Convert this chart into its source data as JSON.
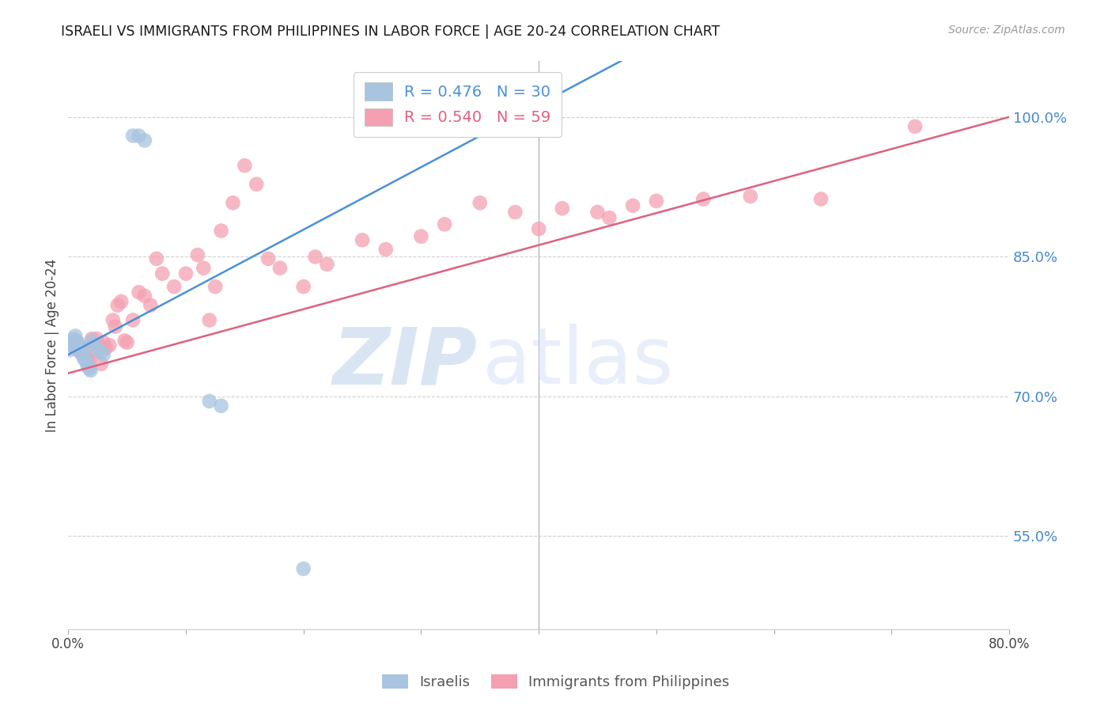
{
  "title": "ISRAELI VS IMMIGRANTS FROM PHILIPPINES IN LABOR FORCE | AGE 20-24 CORRELATION CHART",
  "source": "Source: ZipAtlas.com",
  "ylabel": "In Labor Force | Age 20-24",
  "xlim": [
    0.0,
    0.8
  ],
  "ylim": [
    0.45,
    1.06
  ],
  "right_yticks": [
    0.55,
    0.7,
    0.85,
    1.0
  ],
  "right_yticklabels": [
    "55.0%",
    "70.0%",
    "85.0%",
    "100.0%"
  ],
  "xticks": [
    0.0,
    0.1,
    0.2,
    0.3,
    0.4,
    0.5,
    0.6,
    0.7,
    0.8
  ],
  "xticklabels": [
    "0.0%",
    "",
    "",
    "",
    "",
    "",
    "",
    "",
    "80.0%"
  ],
  "R_israeli": 0.476,
  "N_israeli": 30,
  "R_philippines": 0.54,
  "N_philippines": 59,
  "israeli_color": "#a8c4e0",
  "philippines_color": "#f4a0b0",
  "israeli_line_color": "#4a90d9",
  "philippines_line_color": "#e06080",
  "watermark_zip_color": "#c0d4ec",
  "watermark_atlas_color": "#ccdcf4",
  "background_color": "#ffffff",
  "isr_x": [
    0.001,
    0.002,
    0.003,
    0.004,
    0.005,
    0.006,
    0.007,
    0.008,
    0.009,
    0.01,
    0.011,
    0.012,
    0.013,
    0.014,
    0.015,
    0.016,
    0.017,
    0.018,
    0.019,
    0.02,
    0.022,
    0.025,
    0.028,
    0.03,
    0.055,
    0.06,
    0.065,
    0.12,
    0.13,
    0.2
  ],
  "isr_y": [
    0.75,
    0.76,
    0.755,
    0.758,
    0.762,
    0.765,
    0.76,
    0.758,
    0.755,
    0.752,
    0.748,
    0.745,
    0.742,
    0.74,
    0.738,
    0.735,
    0.732,
    0.73,
    0.728,
    0.76,
    0.755,
    0.75,
    0.748,
    0.745,
    0.98,
    0.98,
    0.975,
    0.695,
    0.69,
    0.515
  ],
  "phi_x": [
    0.004,
    0.006,
    0.008,
    0.01,
    0.012,
    0.014,
    0.016,
    0.018,
    0.02,
    0.022,
    0.024,
    0.026,
    0.028,
    0.03,
    0.032,
    0.035,
    0.038,
    0.04,
    0.042,
    0.045,
    0.048,
    0.05,
    0.055,
    0.06,
    0.065,
    0.07,
    0.075,
    0.08,
    0.09,
    0.1,
    0.11,
    0.115,
    0.12,
    0.125,
    0.13,
    0.14,
    0.15,
    0.16,
    0.17,
    0.18,
    0.2,
    0.21,
    0.22,
    0.25,
    0.27,
    0.3,
    0.32,
    0.35,
    0.38,
    0.4,
    0.42,
    0.45,
    0.46,
    0.48,
    0.5,
    0.54,
    0.58,
    0.64,
    0.72
  ],
  "phi_y": [
    0.755,
    0.758,
    0.75,
    0.748,
    0.752,
    0.745,
    0.74,
    0.738,
    0.762,
    0.748,
    0.762,
    0.752,
    0.735,
    0.758,
    0.752,
    0.755,
    0.782,
    0.775,
    0.798,
    0.802,
    0.76,
    0.758,
    0.782,
    0.812,
    0.808,
    0.798,
    0.848,
    0.832,
    0.818,
    0.832,
    0.852,
    0.838,
    0.782,
    0.818,
    0.878,
    0.908,
    0.948,
    0.928,
    0.848,
    0.838,
    0.818,
    0.85,
    0.842,
    0.868,
    0.858,
    0.872,
    0.885,
    0.908,
    0.898,
    0.88,
    0.902,
    0.898,
    0.892,
    0.905,
    0.91,
    0.912,
    0.915,
    0.912,
    0.99
  ]
}
